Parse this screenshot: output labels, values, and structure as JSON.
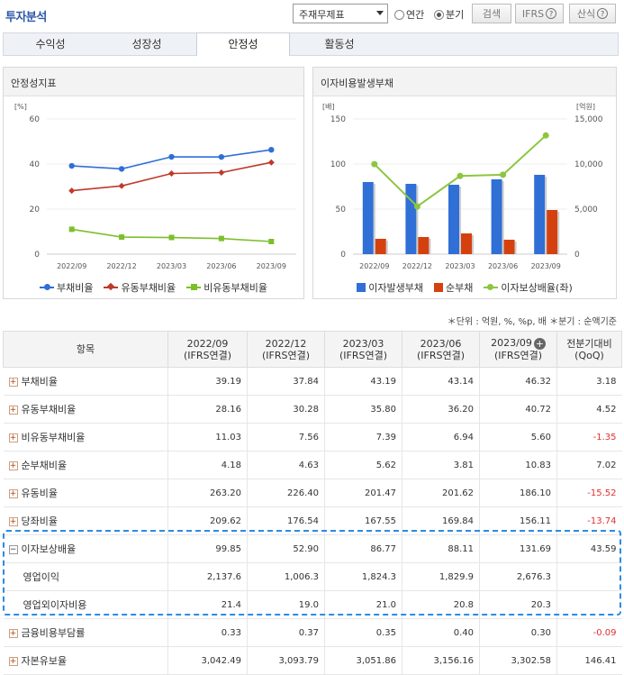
{
  "header": {
    "title": "투자분석",
    "select_value": "주재무제표",
    "radio_annual": "연간",
    "radio_quarter": "분기",
    "search_btn": "검색",
    "ifrs_btn": "IFRS",
    "formula_btn": "산식"
  },
  "tabs": [
    "수익성",
    "성장성",
    "안정성",
    "활동성"
  ],
  "chart_left": {
    "panel_title": "안정성지표",
    "chart_data": {
      "type": "line",
      "categories": [
        "2022/09",
        "2022/12",
        "2023/03",
        "2023/06",
        "2023/09"
      ],
      "series": [
        {
          "name": "부채비율",
          "values": [
            39.19,
            37.84,
            43.19,
            43.14,
            46.32
          ],
          "color": "#2f6fd6"
        },
        {
          "name": "유동부채비율",
          "values": [
            28.16,
            30.28,
            35.8,
            36.2,
            40.72
          ],
          "color": "#c0392b"
        },
        {
          "name": "비유동부채비율",
          "values": [
            11.03,
            7.56,
            7.39,
            6.94,
            5.6
          ],
          "color": "#7cbf2b"
        }
      ],
      "ylabel": "[%]",
      "ylim": [
        0,
        60
      ],
      "yticks": [
        "0",
        "20",
        "40",
        "60"
      ]
    }
  },
  "chart_right": {
    "panel_title": "이자비용발생부채",
    "chart_data": {
      "type": "bar",
      "categories": [
        "2022/09",
        "2022/12",
        "2023/03",
        "2023/06",
        "2023/09"
      ],
      "series": [
        {
          "name": "이자발생부채",
          "values": [
            80,
            78,
            77,
            83,
            88
          ],
          "color": "#2f6fd6"
        },
        {
          "name": "순부채",
          "values": [
            17,
            19,
            23,
            16,
            49
          ],
          "color": "#d4410f"
        },
        {
          "name": "이자보상배율(좌)",
          "values": [
            99.85,
            52.9,
            86.77,
            88.11,
            131.69
          ],
          "color": "#8cc63f",
          "type": "line"
        }
      ],
      "ylabel_left": "[배]",
      "ylabel_right": "[억원]",
      "ylim": [
        0,
        150
      ],
      "yticks_left": [
        "0",
        "50",
        "100",
        "150"
      ],
      "yticks_right": [
        "0",
        "5,000",
        "10,000",
        "15,000"
      ]
    }
  },
  "unit_note": "＊단위 : 억원, %, %p, 배    ＊분기 : 순액기준",
  "table": {
    "col_item": "항목",
    "columns": [
      {
        "period": "2022/09",
        "basis": "(IFRS연결)"
      },
      {
        "period": "2022/12",
        "basis": "(IFRS연결)"
      },
      {
        "period": "2023/03",
        "basis": "(IFRS연결)"
      },
      {
        "period": "2023/06",
        "basis": "(IFRS연결)"
      },
      {
        "period": "2023/09",
        "basis": "(IFRS연결)"
      }
    ],
    "col_qoq_1": "전분기대비",
    "col_qoq_2": "(QoQ)",
    "rows": [
      {
        "label": "부채비율",
        "values": [
          "39.19",
          "37.84",
          "43.19",
          "43.14",
          "46.32"
        ],
        "qoq": "3.18",
        "type": "plus"
      },
      {
        "label": "유동부채비율",
        "values": [
          "28.16",
          "30.28",
          "35.80",
          "36.20",
          "40.72"
        ],
        "qoq": "4.52",
        "type": "plus"
      },
      {
        "label": "비유동부채비율",
        "values": [
          "11.03",
          "7.56",
          "7.39",
          "6.94",
          "5.60"
        ],
        "qoq": "-1.35",
        "type": "plus"
      },
      {
        "label": "순부채비율",
        "values": [
          "4.18",
          "4.63",
          "5.62",
          "3.81",
          "10.83"
        ],
        "qoq": "7.02",
        "type": "plus"
      },
      {
        "label": "유동비율",
        "values": [
          "263.20",
          "226.40",
          "201.47",
          "201.62",
          "186.10"
        ],
        "qoq": "-15.52",
        "type": "plus"
      },
      {
        "label": "당좌비율",
        "values": [
          "209.62",
          "176.54",
          "167.55",
          "169.84",
          "156.11"
        ],
        "qoq": "-13.74",
        "type": "plus"
      },
      {
        "label": "이자보상배율",
        "values": [
          "99.85",
          "52.90",
          "86.77",
          "88.11",
          "131.69"
        ],
        "qoq": "43.59",
        "type": "minus"
      },
      {
        "label": "영업이익",
        "values": [
          "2,137.6",
          "1,006.3",
          "1,824.3",
          "1,829.9",
          "2,676.3"
        ],
        "qoq": "",
        "type": "sub"
      },
      {
        "label": "영업외이자비용",
        "values": [
          "21.4",
          "19.0",
          "21.0",
          "20.8",
          "20.3"
        ],
        "qoq": "",
        "type": "sub"
      },
      {
        "label": "금융비용부담률",
        "values": [
          "0.33",
          "0.37",
          "0.35",
          "0.40",
          "0.30"
        ],
        "qoq": "-0.09",
        "type": "plus"
      },
      {
        "label": "자본유보율",
        "values": [
          "3,042.49",
          "3,093.79",
          "3,051.86",
          "3,156.16",
          "3,302.58"
        ],
        "qoq": "146.41",
        "type": "plus"
      }
    ]
  }
}
